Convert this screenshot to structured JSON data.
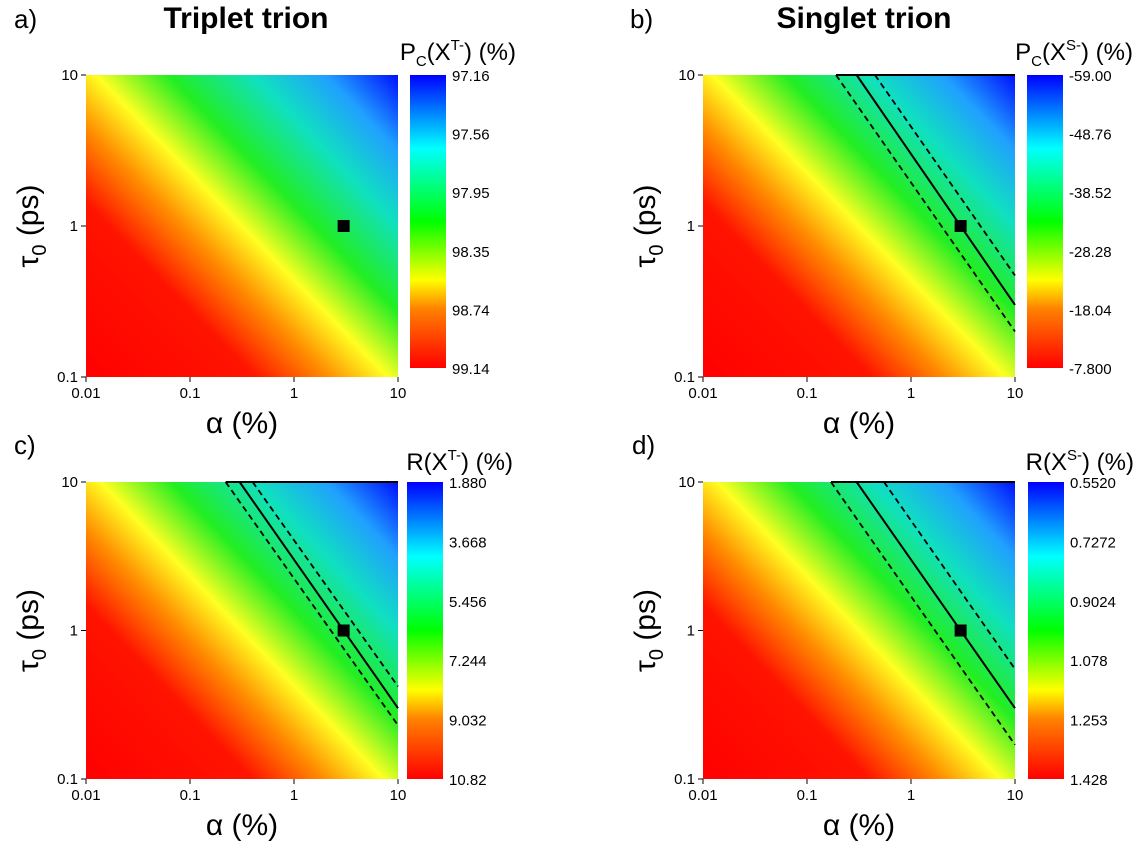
{
  "panel_titles": [
    "Triplet trion",
    "Singlet trion"
  ],
  "colorscale": [
    "#ff0000",
    "#ff7f00",
    "#ffff00",
    "#00ff00",
    "#00ffff",
    "#0000ff"
  ],
  "chart_data": [
    {
      "type": "heatmap",
      "panel_label": "a)",
      "title": "Triplet trion",
      "xlabel": "α (%)",
      "ylabel": "τ0 (ps)",
      "x_scale": "log",
      "y_scale": "log",
      "xlim": [
        0.01,
        10
      ],
      "ylim": [
        0.1,
        10
      ],
      "x_ticks": [
        "0.01",
        "0.1",
        "1",
        "10"
      ],
      "y_ticks": [
        "0.1",
        "1",
        "10"
      ],
      "colorbar_title": "PC(XT-) (%)",
      "colorbar_ticks": [
        "97.16",
        "97.56",
        "97.95",
        "98.35",
        "98.74",
        "99.14"
      ],
      "colorbar_range": [
        97.16,
        99.14
      ],
      "marker": {
        "x": 3,
        "y": 1
      },
      "contour_lines": []
    },
    {
      "type": "heatmap",
      "panel_label": "b)",
      "title": "Singlet trion",
      "xlabel": "α (%)",
      "ylabel": "τ0 (ps)",
      "x_scale": "log",
      "y_scale": "log",
      "xlim": [
        0.01,
        10
      ],
      "ylim": [
        0.1,
        10
      ],
      "x_ticks": [
        "0.01",
        "0.1",
        "1",
        "10"
      ],
      "y_ticks": [
        "0.1",
        "1",
        "10"
      ],
      "colorbar_title": "PC(XS-) (%)",
      "colorbar_ticks": [
        "-59.00",
        "-48.76",
        "-38.52",
        "-28.28",
        "-18.04",
        "-7.800"
      ],
      "colorbar_range": [
        -59.0,
        -7.8
      ],
      "marker": {
        "x": 3,
        "y": 1
      },
      "contour_lines": [
        {
          "style": "dashed",
          "x": [
            0.19,
            10
          ],
          "y": [
            10,
            0.2
          ]
        },
        {
          "style": "solid",
          "x": [
            0.3,
            10
          ],
          "y": [
            10,
            0.3
          ]
        },
        {
          "style": "dashed",
          "x": [
            0.45,
            10
          ],
          "y": [
            10,
            0.47
          ]
        }
      ]
    },
    {
      "type": "heatmap",
      "panel_label": "c)",
      "xlabel": "α (%)",
      "ylabel": "τ0 (ps)",
      "x_scale": "log",
      "y_scale": "log",
      "xlim": [
        0.01,
        10
      ],
      "ylim": [
        0.1,
        10
      ],
      "x_ticks": [
        "0.01",
        "0.1",
        "1",
        "10"
      ],
      "y_ticks": [
        "0.1",
        "1",
        "10"
      ],
      "colorbar_title": "R(XT-) (%)",
      "colorbar_ticks": [
        "1.880",
        "3.668",
        "5.456",
        "7.244",
        "9.032",
        "10.82"
      ],
      "colorbar_range": [
        1.88,
        10.82
      ],
      "marker": {
        "x": 3,
        "y": 1
      },
      "contour_lines": [
        {
          "style": "dashed",
          "x": [
            0.22,
            10
          ],
          "y": [
            10,
            0.23
          ]
        },
        {
          "style": "solid",
          "x": [
            0.3,
            10
          ],
          "y": [
            10,
            0.3
          ]
        },
        {
          "style": "dashed",
          "x": [
            0.4,
            10
          ],
          "y": [
            10,
            0.42
          ]
        }
      ]
    },
    {
      "type": "heatmap",
      "panel_label": "d)",
      "xlabel": "α (%)",
      "ylabel": "τ0 (ps)",
      "x_scale": "log",
      "y_scale": "log",
      "xlim": [
        0.01,
        10
      ],
      "ylim": [
        0.1,
        10
      ],
      "x_ticks": [
        "0.01",
        "0.1",
        "1",
        "10"
      ],
      "y_ticks": [
        "0.1",
        "1",
        "10"
      ],
      "colorbar_title": "R(XS-) (%)",
      "colorbar_ticks": [
        "0.5520",
        "0.7272",
        "0.9024",
        "1.078",
        "1.253",
        "1.428"
      ],
      "colorbar_range": [
        0.552,
        1.428
      ],
      "marker": {
        "x": 3,
        "y": 1
      },
      "contour_lines": [
        {
          "style": "dashed",
          "x": [
            0.17,
            10
          ],
          "y": [
            10,
            0.17
          ]
        },
        {
          "style": "solid",
          "x": [
            0.3,
            10
          ],
          "y": [
            10,
            0.3
          ]
        },
        {
          "style": "dashed",
          "x": [
            0.55,
            10
          ],
          "y": [
            10,
            0.55
          ]
        }
      ]
    }
  ]
}
